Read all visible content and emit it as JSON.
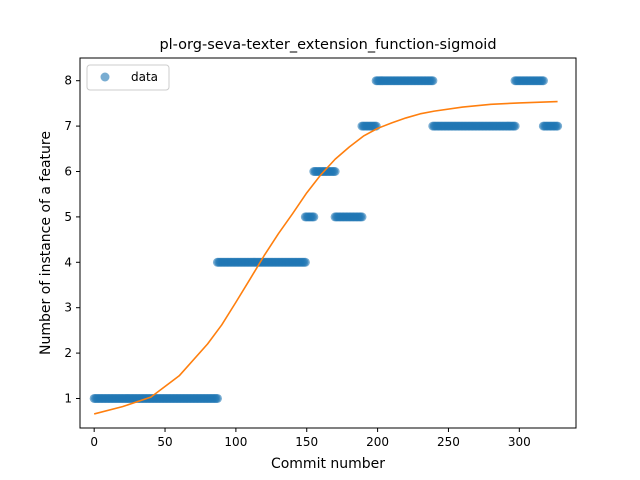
{
  "chart_data": {
    "type": "scatter",
    "title": "pl-org-seva-texter_extension_function-sigmoid",
    "xlabel": "Commit number",
    "ylabel": "Number of instance of a feature",
    "xlim": [
      -10,
      340
    ],
    "ylim": [
      0.35,
      8.5
    ],
    "xticks": [
      0,
      50,
      100,
      150,
      200,
      250,
      300
    ],
    "yticks": [
      1,
      2,
      3,
      4,
      5,
      6,
      7,
      8
    ],
    "grid": false,
    "legend": {
      "placement": "top-left",
      "entries": [
        "data"
      ]
    },
    "colors": {
      "data": "#1f77b4",
      "fit": "#ff7f0e"
    },
    "series": [
      {
        "name": "data",
        "kind": "scatter",
        "segments": [
          {
            "x_start": 0,
            "x_end": 87,
            "y": 1
          },
          {
            "x_start": 87,
            "x_end": 149,
            "y": 4
          },
          {
            "x_start": 149,
            "x_end": 155,
            "y": 5
          },
          {
            "x_start": 155,
            "x_end": 170,
            "y": 6
          },
          {
            "x_start": 170,
            "x_end": 189,
            "y": 5
          },
          {
            "x_start": 189,
            "x_end": 199,
            "y": 7
          },
          {
            "x_start": 199,
            "x_end": 239,
            "y": 8
          },
          {
            "x_start": 239,
            "x_end": 297,
            "y": 7
          },
          {
            "x_start": 297,
            "x_end": 317,
            "y": 8
          },
          {
            "x_start": 317,
            "x_end": 327,
            "y": 7
          }
        ]
      },
      {
        "name": "",
        "kind": "line",
        "x": [
          0,
          20,
          40,
          60,
          80,
          90,
          100,
          110,
          120,
          130,
          140,
          150,
          160,
          170,
          180,
          190,
          200,
          210,
          220,
          230,
          240,
          260,
          280,
          300,
          327
        ],
        "y": [
          0.66,
          0.82,
          1.03,
          1.5,
          2.2,
          2.62,
          3.12,
          3.63,
          4.15,
          4.63,
          5.07,
          5.53,
          5.93,
          6.27,
          6.54,
          6.78,
          6.95,
          7.07,
          7.18,
          7.27,
          7.33,
          7.42,
          7.48,
          7.51,
          7.54
        ]
      }
    ]
  }
}
